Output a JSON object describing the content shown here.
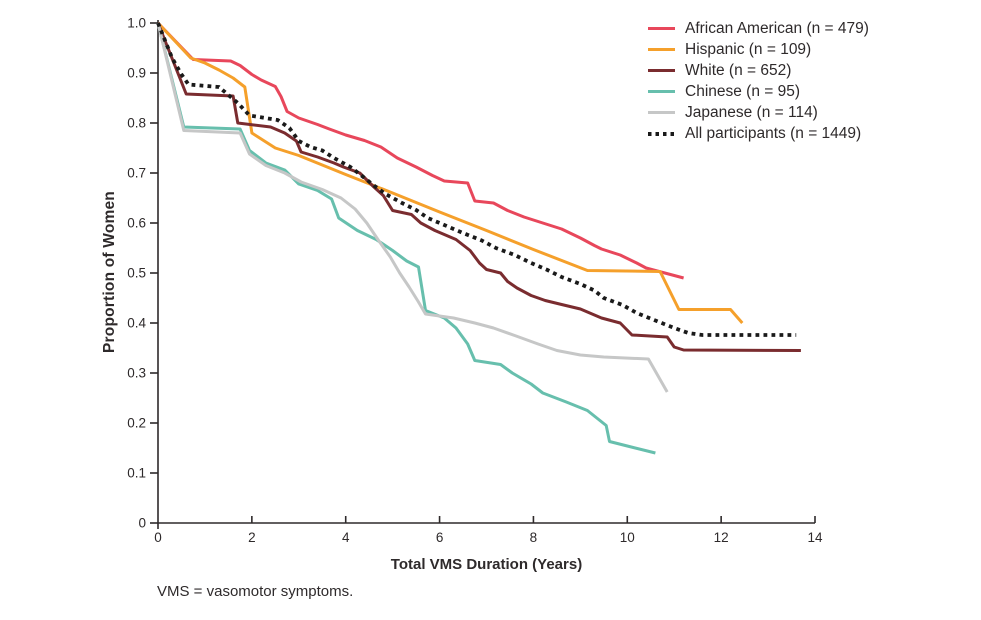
{
  "figure": {
    "footnote": "VMS = vasomotor symptoms."
  },
  "chart_data": {
    "type": "line",
    "title": "",
    "xlabel": "Total VMS Duration (Years)",
    "ylabel": "Proportion of Women",
    "xlim": [
      0,
      14
    ],
    "ylim": [
      0,
      1.0
    ],
    "x_ticks": [
      0,
      2,
      4,
      6,
      8,
      10,
      12,
      14
    ],
    "x_tick_labels": [
      "0",
      "2",
      "4",
      "6",
      "8",
      "10",
      "12",
      "14"
    ],
    "y_ticks": [
      1.0,
      0.9,
      0.8,
      0.7,
      0.6,
      0.5,
      0.4,
      0.3,
      0.2,
      0.1,
      0
    ],
    "y_tick_labels": [
      "1.0",
      "0.9",
      "0.8",
      "0.7",
      "0.6",
      "0.5",
      "0.4",
      "0.3",
      "0.2",
      "0.1",
      "0"
    ],
    "grid": false,
    "legend_position": "top-right",
    "axis_color": "#2e2a2b",
    "series": [
      {
        "name": "African American (n = 479)",
        "color": "#e8475b",
        "style": "solid",
        "points": [
          [
            0,
            1.0
          ],
          [
            0.75,
            0.927
          ],
          [
            1.55,
            0.924
          ],
          [
            1.75,
            0.915
          ],
          [
            2.0,
            0.897
          ],
          [
            2.2,
            0.886
          ],
          [
            2.5,
            0.873
          ],
          [
            2.62,
            0.853
          ],
          [
            2.75,
            0.823
          ],
          [
            3.0,
            0.81
          ],
          [
            3.4,
            0.797
          ],
          [
            3.65,
            0.788
          ],
          [
            4.0,
            0.776
          ],
          [
            4.4,
            0.765
          ],
          [
            4.75,
            0.752
          ],
          [
            5.1,
            0.73
          ],
          [
            5.5,
            0.712
          ],
          [
            5.85,
            0.695
          ],
          [
            6.1,
            0.684
          ],
          [
            6.6,
            0.68
          ],
          [
            6.75,
            0.644
          ],
          [
            7.15,
            0.64
          ],
          [
            7.45,
            0.625
          ],
          [
            7.8,
            0.612
          ],
          [
            8.2,
            0.6
          ],
          [
            8.6,
            0.588
          ],
          [
            9.0,
            0.57
          ],
          [
            9.3,
            0.555
          ],
          [
            9.45,
            0.548
          ],
          [
            9.85,
            0.536
          ],
          [
            10.2,
            0.52
          ],
          [
            10.4,
            0.51
          ],
          [
            11.2,
            0.49
          ]
        ]
      },
      {
        "name": "Hispanic (n = 109)",
        "color": "#f5a02b",
        "style": "solid",
        "points": [
          [
            0,
            1.0
          ],
          [
            0.7,
            0.93
          ],
          [
            1.0,
            0.92
          ],
          [
            1.3,
            0.906
          ],
          [
            1.6,
            0.89
          ],
          [
            1.85,
            0.872
          ],
          [
            2.0,
            0.78
          ],
          [
            2.5,
            0.75
          ],
          [
            3.0,
            0.735
          ],
          [
            4.0,
            0.697
          ],
          [
            5.0,
            0.66
          ],
          [
            6.0,
            0.622
          ],
          [
            7.0,
            0.585
          ],
          [
            8.0,
            0.547
          ],
          [
            9.15,
            0.505
          ],
          [
            10.7,
            0.503
          ],
          [
            11.1,
            0.427
          ],
          [
            12.2,
            0.427
          ],
          [
            12.45,
            0.4
          ]
        ]
      },
      {
        "name": "White (n = 652)",
        "color": "#7a2c2f",
        "style": "solid",
        "points": [
          [
            0,
            1.0
          ],
          [
            0.6,
            0.858
          ],
          [
            1.6,
            0.854
          ],
          [
            1.7,
            0.8
          ],
          [
            2.4,
            0.792
          ],
          [
            2.7,
            0.78
          ],
          [
            2.95,
            0.764
          ],
          [
            3.05,
            0.742
          ],
          [
            3.4,
            0.732
          ],
          [
            3.75,
            0.72
          ],
          [
            3.95,
            0.712
          ],
          [
            4.3,
            0.7
          ],
          [
            4.6,
            0.672
          ],
          [
            4.8,
            0.655
          ],
          [
            5.0,
            0.625
          ],
          [
            5.4,
            0.617
          ],
          [
            5.6,
            0.6
          ],
          [
            5.9,
            0.585
          ],
          [
            6.35,
            0.567
          ],
          [
            6.65,
            0.545
          ],
          [
            6.85,
            0.52
          ],
          [
            7.0,
            0.507
          ],
          [
            7.3,
            0.5
          ],
          [
            7.45,
            0.483
          ],
          [
            7.65,
            0.47
          ],
          [
            7.95,
            0.455
          ],
          [
            8.25,
            0.445
          ],
          [
            8.6,
            0.437
          ],
          [
            9.0,
            0.428
          ],
          [
            9.45,
            0.41
          ],
          [
            9.85,
            0.4
          ],
          [
            10.1,
            0.376
          ],
          [
            10.85,
            0.372
          ],
          [
            11.0,
            0.352
          ],
          [
            11.2,
            0.346
          ],
          [
            13.7,
            0.345
          ]
        ]
      },
      {
        "name": "Chinese (n = 95)",
        "color": "#67bfad",
        "style": "solid",
        "points": [
          [
            0,
            1.0
          ],
          [
            0.55,
            0.792
          ],
          [
            1.75,
            0.788
          ],
          [
            1.95,
            0.745
          ],
          [
            2.3,
            0.72
          ],
          [
            2.7,
            0.706
          ],
          [
            3.0,
            0.678
          ],
          [
            3.4,
            0.665
          ],
          [
            3.7,
            0.648
          ],
          [
            3.85,
            0.61
          ],
          [
            4.25,
            0.585
          ],
          [
            4.65,
            0.567
          ],
          [
            5.0,
            0.545
          ],
          [
            5.3,
            0.524
          ],
          [
            5.55,
            0.512
          ],
          [
            5.7,
            0.425
          ],
          [
            6.1,
            0.41
          ],
          [
            6.35,
            0.39
          ],
          [
            6.6,
            0.358
          ],
          [
            6.75,
            0.325
          ],
          [
            7.3,
            0.317
          ],
          [
            7.55,
            0.3
          ],
          [
            7.95,
            0.278
          ],
          [
            8.2,
            0.26
          ],
          [
            8.7,
            0.242
          ],
          [
            9.15,
            0.225
          ],
          [
            9.55,
            0.195
          ],
          [
            9.62,
            0.163
          ],
          [
            10.0,
            0.154
          ],
          [
            10.6,
            0.14
          ]
        ]
      },
      {
        "name": "Japanese (n = 114)",
        "color": "#c6c7c7",
        "style": "solid",
        "points": [
          [
            0,
            1.0
          ],
          [
            0.55,
            0.785
          ],
          [
            1.75,
            0.78
          ],
          [
            1.95,
            0.738
          ],
          [
            2.3,
            0.715
          ],
          [
            2.7,
            0.7
          ],
          [
            3.05,
            0.682
          ],
          [
            3.5,
            0.667
          ],
          [
            3.9,
            0.65
          ],
          [
            4.2,
            0.628
          ],
          [
            4.45,
            0.6
          ],
          [
            4.7,
            0.565
          ],
          [
            4.95,
            0.532
          ],
          [
            5.15,
            0.5
          ],
          [
            5.35,
            0.472
          ],
          [
            5.55,
            0.442
          ],
          [
            5.7,
            0.418
          ],
          [
            6.3,
            0.41
          ],
          [
            6.75,
            0.4
          ],
          [
            7.15,
            0.39
          ],
          [
            7.6,
            0.375
          ],
          [
            8.1,
            0.358
          ],
          [
            8.5,
            0.345
          ],
          [
            9.0,
            0.336
          ],
          [
            9.5,
            0.332
          ],
          [
            10.45,
            0.328
          ],
          [
            10.85,
            0.262
          ]
        ]
      },
      {
        "name": "All participants (n = 1449)",
        "color": "#1a1a1a",
        "style": "dotted",
        "points": [
          [
            0,
            1.0
          ],
          [
            0.3,
            0.93
          ],
          [
            0.5,
            0.897
          ],
          [
            0.65,
            0.877
          ],
          [
            1.3,
            0.872
          ],
          [
            1.5,
            0.856
          ],
          [
            1.7,
            0.84
          ],
          [
            1.95,
            0.815
          ],
          [
            2.55,
            0.806
          ],
          [
            2.8,
            0.79
          ],
          [
            3.0,
            0.764
          ],
          [
            3.25,
            0.752
          ],
          [
            3.5,
            0.745
          ],
          [
            3.75,
            0.73
          ],
          [
            4.1,
            0.712
          ],
          [
            4.35,
            0.694
          ],
          [
            4.6,
            0.675
          ],
          [
            4.85,
            0.658
          ],
          [
            5.2,
            0.64
          ],
          [
            5.5,
            0.626
          ],
          [
            5.75,
            0.61
          ],
          [
            6.1,
            0.596
          ],
          [
            6.5,
            0.58
          ],
          [
            6.9,
            0.565
          ],
          [
            7.2,
            0.55
          ],
          [
            7.6,
            0.536
          ],
          [
            7.95,
            0.52
          ],
          [
            8.3,
            0.506
          ],
          [
            8.6,
            0.492
          ],
          [
            9.0,
            0.478
          ],
          [
            9.3,
            0.465
          ],
          [
            9.5,
            0.45
          ],
          [
            9.9,
            0.436
          ],
          [
            10.2,
            0.42
          ],
          [
            10.6,
            0.405
          ],
          [
            11.0,
            0.39
          ],
          [
            11.3,
            0.38
          ],
          [
            11.6,
            0.376
          ],
          [
            13.6,
            0.376
          ]
        ]
      }
    ]
  }
}
